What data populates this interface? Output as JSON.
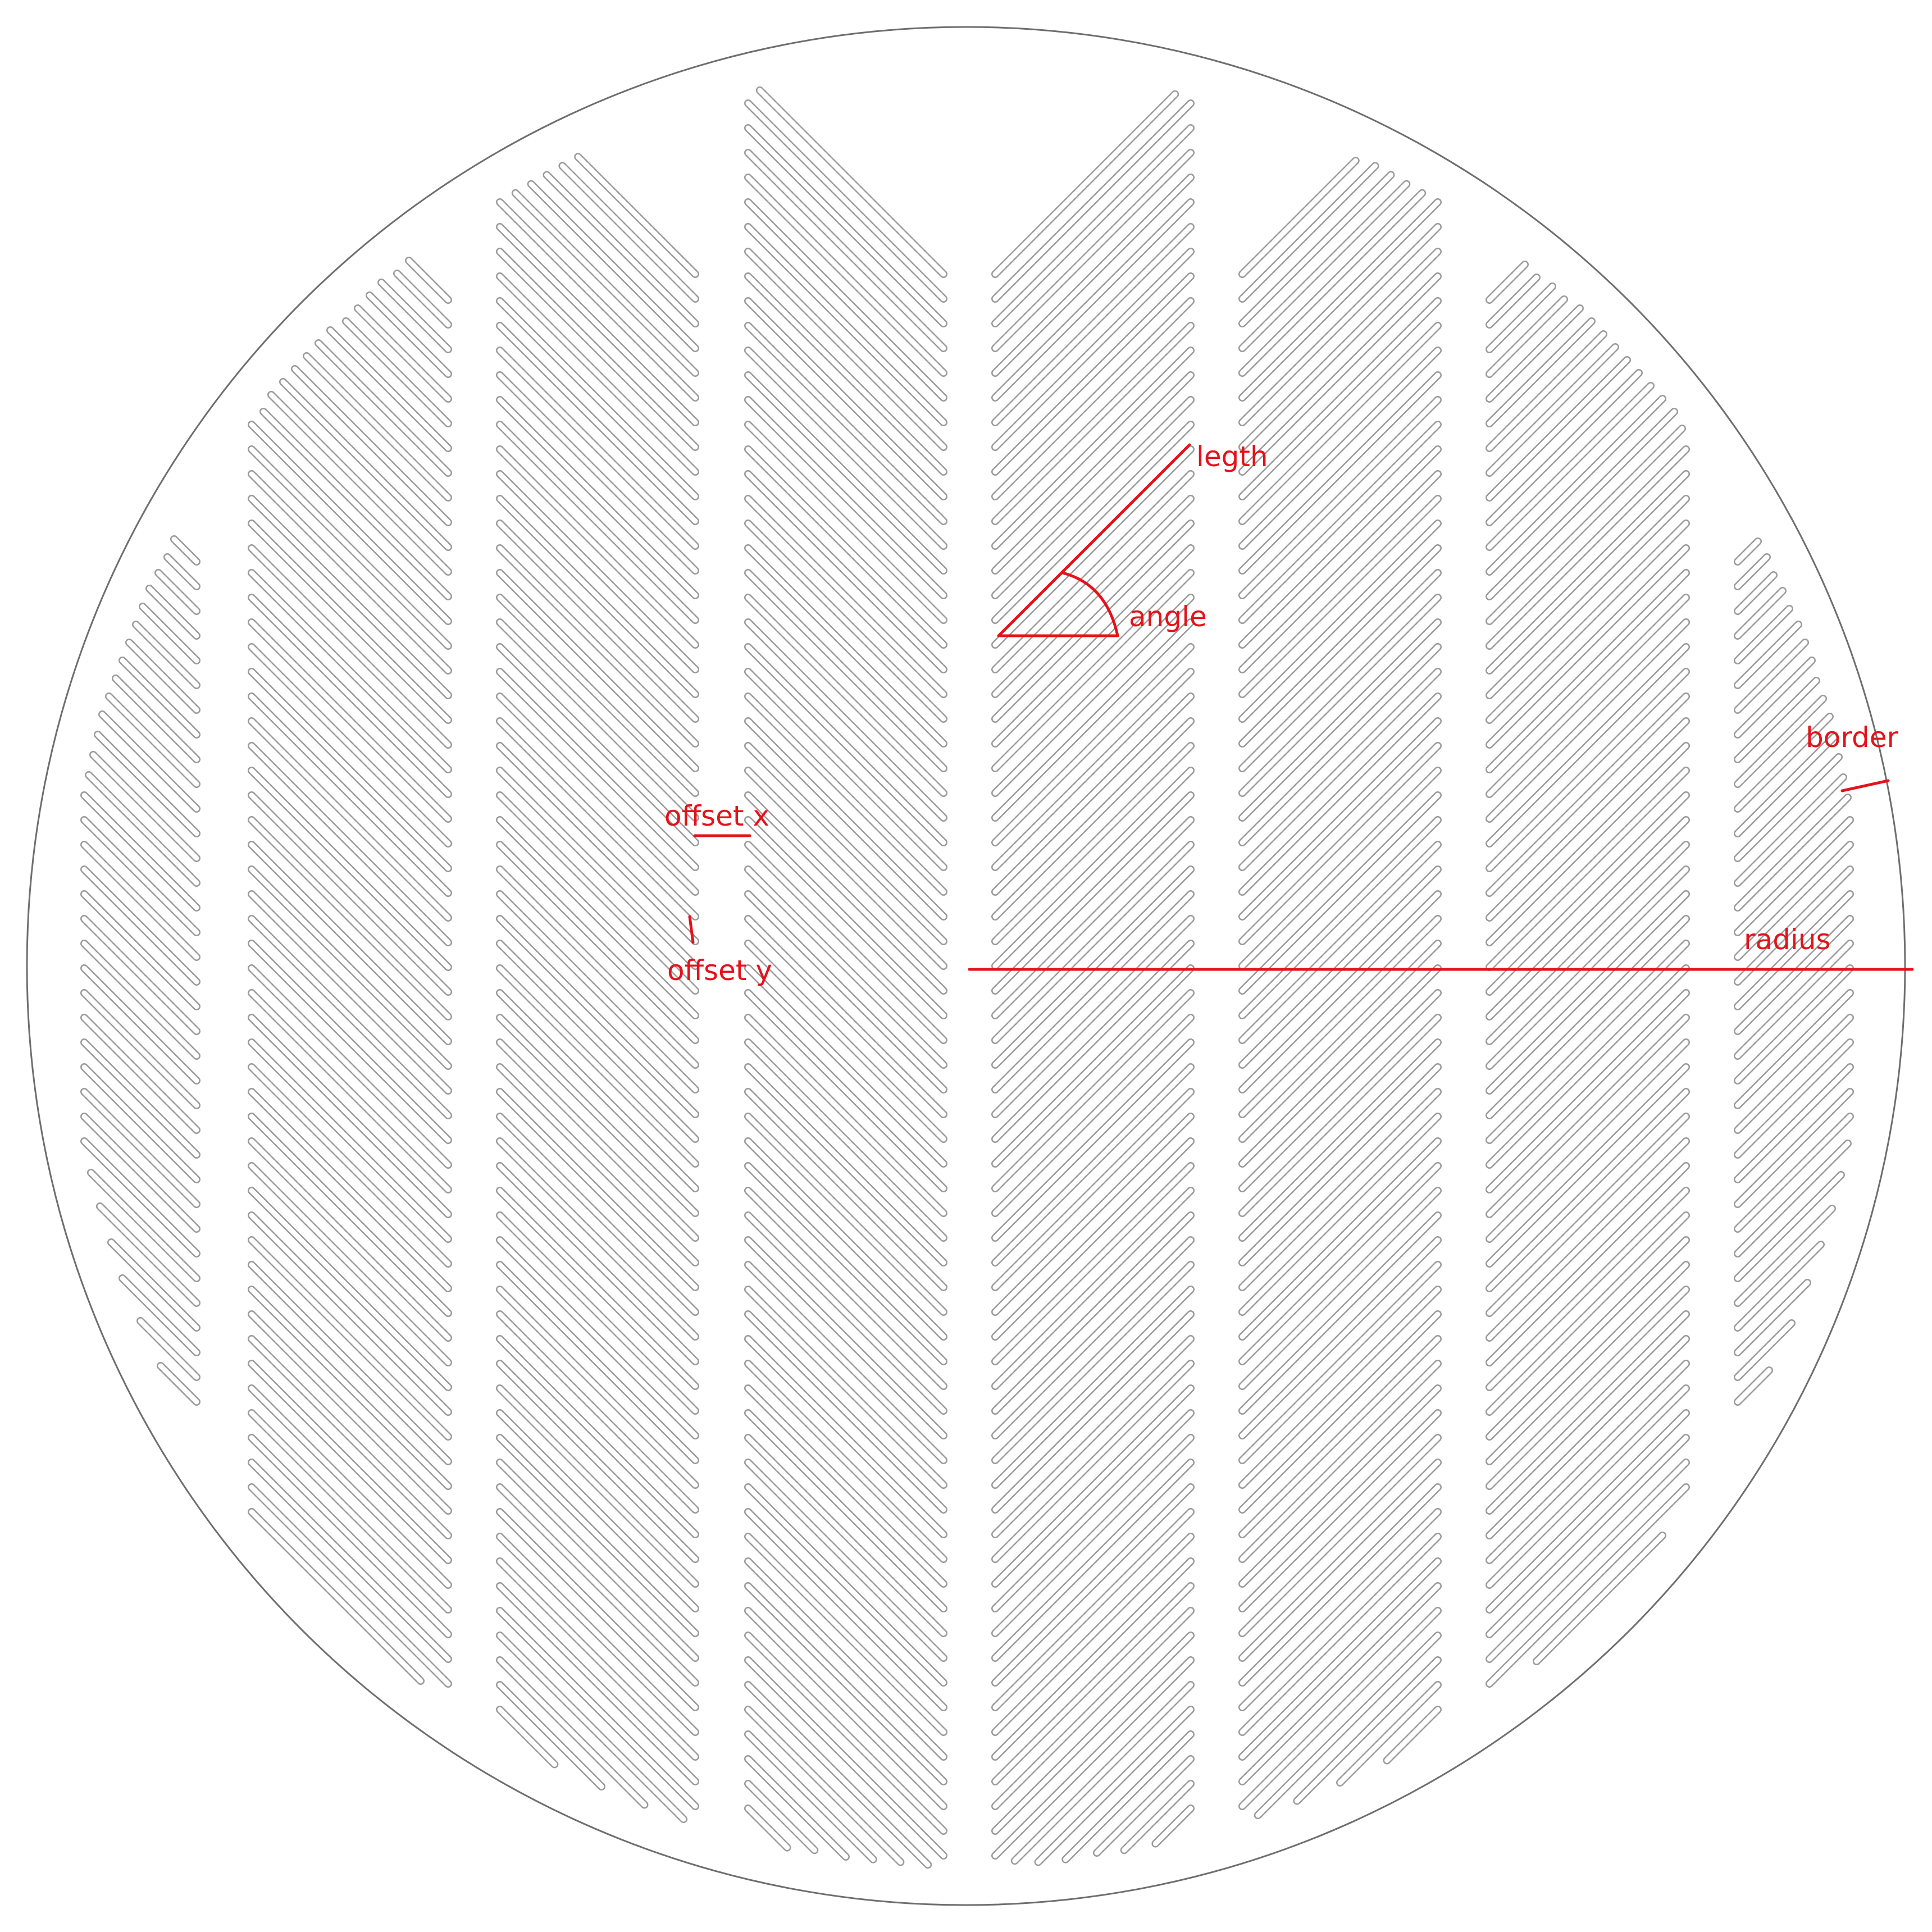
{
  "labels": {
    "length": "legth",
    "angle": "angle",
    "border": "border",
    "offset_x": "offset x",
    "offset_y": "offset y",
    "radius": "radius"
  },
  "colors": {
    "outline": "#6e6e6e",
    "slot": "#9a9a9a",
    "annotation": "#e5121a",
    "background": "#ffffff"
  },
  "pattern": {
    "columns": 8,
    "slots_per_column_max": 61,
    "slot_direction": "diagonal, rising to the right in the right half, mirrored in the left half",
    "slot_ends": "rounded"
  }
}
